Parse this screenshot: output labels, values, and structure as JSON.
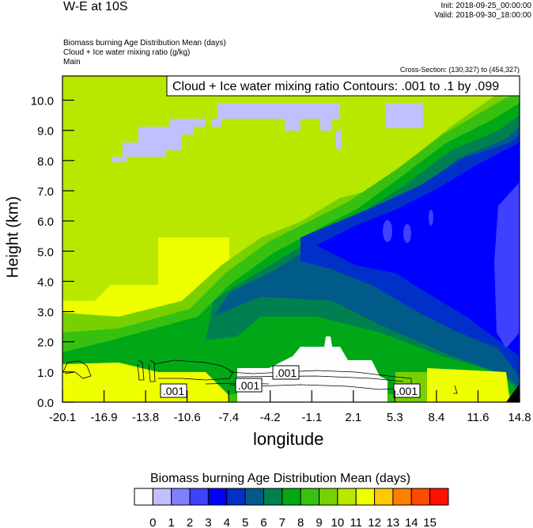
{
  "header": {
    "title": "W-E at 10S",
    "init": "Init: 2018-09-25_00:00:00",
    "valid": "Valid: 2018-09-30_18:00:00",
    "subtitles": [
      "Biomass burning Age Distribution Mean   (days)",
      "Cloud + Ice water mixing ratio   (g/kg)",
      "Main"
    ],
    "cross_section": "Cross-Section: (130,327) to (454,327)"
  },
  "chart_data": {
    "type": "heatmap",
    "title": "W-E at 10S",
    "xlabel": "longitude",
    "ylabel": "Height (km)",
    "xlim": [
      -20.1,
      14.8
    ],
    "ylim": [
      0.0,
      10.8
    ],
    "x_ticks": [
      "-20.1",
      "-16.9",
      "-13.8",
      "-10.6",
      "-7.4",
      "-4.2",
      "-1.1",
      "2.1",
      "5.3",
      "8.4",
      "11.6",
      "14.8"
    ],
    "y_ticks": [
      "0.0",
      "1.0",
      "2.0",
      "3.0",
      "4.0",
      "5.0",
      "6.0",
      "7.0",
      "8.0",
      "9.0",
      "10.0"
    ],
    "contour_info": "Cloud + Ice water mixing ratio Contours: .001 to .1 by .099",
    "contour_labels": [
      ".001",
      ".001",
      ".001",
      ".001"
    ],
    "colorbar": {
      "title": "Biomass burning Age Distribution Mean  (days)",
      "levels": [
        "0",
        "1",
        "2",
        "3",
        "4",
        "5",
        "6",
        "7",
        "8",
        "9",
        "10",
        "11",
        "12",
        "13",
        "14",
        "15"
      ],
      "colors": [
        "#fefefe",
        "#c0c0ff",
        "#8080ff",
        "#4040ff",
        "#0000ff",
        "#0030c8",
        "#005a8a",
        "#008050",
        "#00a818",
        "#38c010",
        "#78d000",
        "#b8e800",
        "#f0ff00",
        "#ffc800",
        "#ff8000",
        "#ff4800",
        "#ff1000"
      ]
    }
  }
}
